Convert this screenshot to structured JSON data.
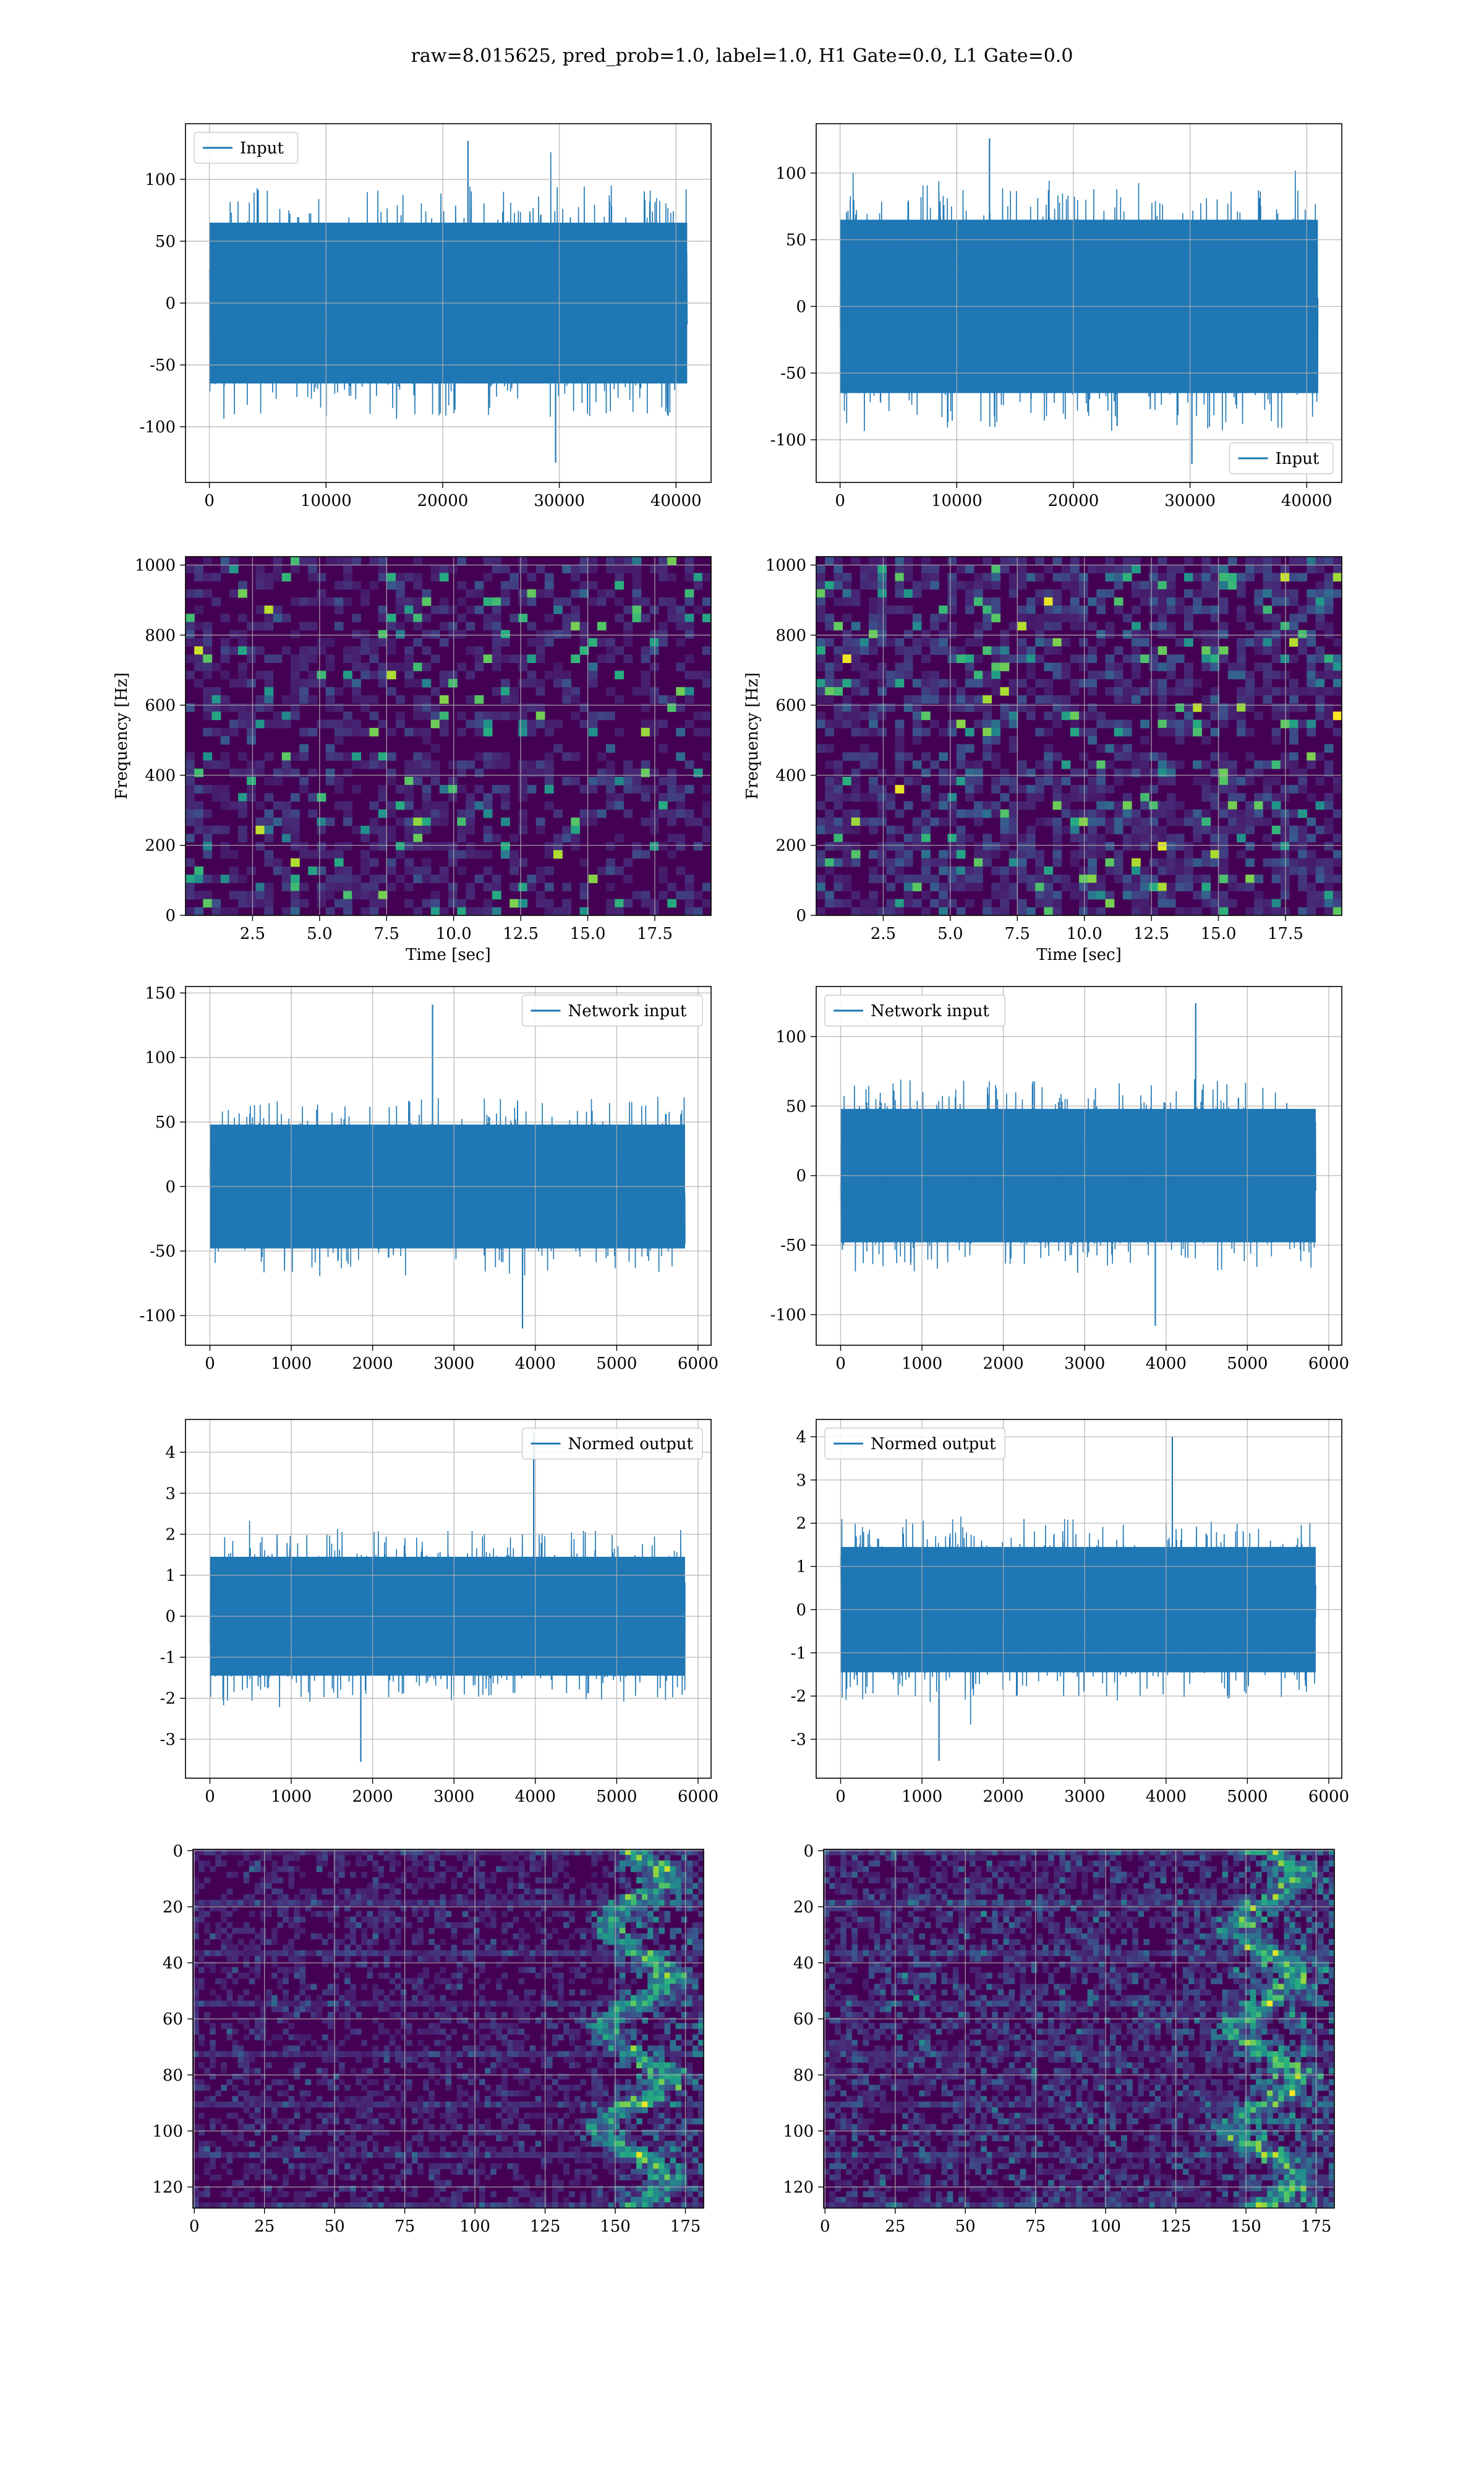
{
  "figure": {
    "suptitle": "raw=8.015625, pred_prob=1.0, label=1.0, H1 Gate=0.0, L1 Gate=0.0"
  },
  "colors": {
    "series": "#1f77b4",
    "viridis_dark": "#440154",
    "grid": "#b0b0b0"
  },
  "chart_data": [
    {
      "id": "h1-input",
      "type": "line",
      "legend": "Input",
      "legend_loc": "upper-left",
      "x": [
        0,
        40960
      ],
      "xticks": [
        0,
        10000,
        20000,
        30000,
        40000
      ],
      "xlim": [
        -2048,
        43008
      ],
      "yticks": [
        -100,
        -50,
        0,
        50,
        100
      ],
      "ylim": [
        -145,
        145
      ],
      "envelope": {
        "core": 65,
        "peak_max": 131,
        "peak_min": -129
      },
      "grid": true
    },
    {
      "id": "l1-input",
      "type": "line",
      "legend": "Input",
      "legend_loc": "lower-right",
      "x": [
        0,
        40960
      ],
      "xticks": [
        0,
        10000,
        20000,
        30000,
        40000
      ],
      "xlim": [
        -2048,
        43008
      ],
      "yticks": [
        -100,
        -50,
        0,
        50,
        100
      ],
      "ylim": [
        -132,
        137
      ],
      "envelope": {
        "core": 65,
        "peak_max": 126,
        "peak_min": -118
      },
      "grid": true
    },
    {
      "id": "h1-spectrogram",
      "type": "heatmap",
      "xlabel": "Time [sec]",
      "ylabel": "Frequency [Hz]",
      "xticks": [
        2.5,
        5.0,
        7.5,
        10.0,
        12.5,
        15.0,
        17.5
      ],
      "xlim": [
        0,
        19.6
      ],
      "yticks": [
        0,
        200,
        400,
        600,
        800,
        1000
      ],
      "ylim": [
        0,
        1024
      ],
      "colormap": "viridis",
      "grid": true
    },
    {
      "id": "l1-spectrogram",
      "type": "heatmap",
      "xlabel": "Time [sec]",
      "ylabel": "Frequency [Hz]",
      "xticks": [
        2.5,
        5.0,
        7.5,
        10.0,
        12.5,
        15.0,
        17.5
      ],
      "xlim": [
        0,
        19.6
      ],
      "yticks": [
        0,
        200,
        400,
        600,
        800,
        1000
      ],
      "ylim": [
        0,
        1024
      ],
      "colormap": "viridis",
      "grid": true
    },
    {
      "id": "h1-network-input",
      "type": "line",
      "legend": "Network input",
      "legend_loc": "upper-right",
      "x": [
        0,
        5840
      ],
      "xticks": [
        0,
        1000,
        2000,
        3000,
        4000,
        5000,
        6000
      ],
      "xlim": [
        -300,
        6160
      ],
      "yticks": [
        -100,
        -50,
        0,
        50,
        100,
        150
      ],
      "ylim": [
        -123,
        155
      ],
      "envelope": {
        "core": 48,
        "peak_max": 141,
        "peak_min": -110
      },
      "grid": true
    },
    {
      "id": "l1-network-input",
      "type": "line",
      "legend": "Network input",
      "legend_loc": "upper-left",
      "x": [
        0,
        5840
      ],
      "xticks": [
        0,
        1000,
        2000,
        3000,
        4000,
        5000,
        6000
      ],
      "xlim": [
        -300,
        6160
      ],
      "yticks": [
        -100,
        -50,
        0,
        50,
        100
      ],
      "ylim": [
        -122,
        136
      ],
      "envelope": {
        "core": 48,
        "peak_max": 124,
        "peak_min": -108
      },
      "grid": true
    },
    {
      "id": "h1-normed-output",
      "type": "line",
      "legend": "Normed output",
      "legend_loc": "upper-right",
      "x": [
        0,
        5840
      ],
      "xticks": [
        0,
        1000,
        2000,
        3000,
        4000,
        5000,
        6000
      ],
      "xlim": [
        -300,
        6160
      ],
      "yticks": [
        -3,
        -2,
        -1,
        0,
        1,
        2,
        3,
        4
      ],
      "ylim": [
        -3.95,
        4.8
      ],
      "envelope": {
        "core": 1.45,
        "peak_max": 4.5,
        "peak_min": -3.55
      },
      "grid": true
    },
    {
      "id": "l1-normed-output",
      "type": "line",
      "legend": "Normed output",
      "legend_loc": "upper-left",
      "x": [
        0,
        5840
      ],
      "xticks": [
        0,
        1000,
        2000,
        3000,
        4000,
        5000,
        6000
      ],
      "xlim": [
        -300,
        6160
      ],
      "yticks": [
        -3,
        -2,
        -1,
        0,
        1,
        2,
        3,
        4
      ],
      "ylim": [
        -3.9,
        4.4
      ],
      "envelope": {
        "core": 1.45,
        "peak_max": 4.0,
        "peak_min": -3.5
      },
      "grid": true
    },
    {
      "id": "h1-qtransform",
      "type": "heatmap",
      "xticks": [
        0,
        25,
        50,
        75,
        100,
        125,
        150,
        175
      ],
      "xlim": [
        -0.5,
        181.5
      ],
      "yticks": [
        0,
        20,
        40,
        60,
        80,
        100,
        120
      ],
      "ylim": [
        127.5,
        -0.5
      ],
      "colormap": "viridis",
      "grid": true
    },
    {
      "id": "l1-qtransform",
      "type": "heatmap",
      "xticks": [
        0,
        25,
        50,
        75,
        100,
        125,
        150,
        175
      ],
      "xlim": [
        -0.5,
        181.5
      ],
      "yticks": [
        0,
        20,
        40,
        60,
        80,
        100,
        120
      ],
      "ylim": [
        127.5,
        -0.5
      ],
      "colormap": "viridis",
      "grid": true
    }
  ]
}
